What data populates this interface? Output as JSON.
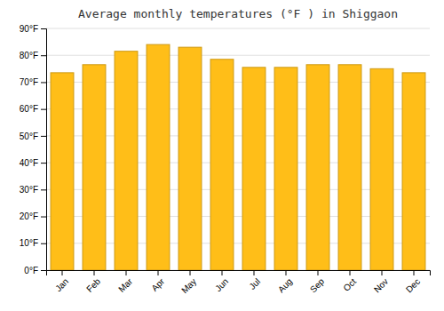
{
  "chart_data": {
    "type": "bar",
    "title": "Average monthly temperatures (°F ) in Shiggaon",
    "categories": [
      "Jan",
      "Feb",
      "Mar",
      "Apr",
      "May",
      "Jun",
      "Jul",
      "Aug",
      "Sep",
      "Oct",
      "Nov",
      "Dec"
    ],
    "values": [
      73.5,
      76.5,
      81.5,
      84.0,
      83.0,
      78.5,
      75.5,
      75.5,
      76.5,
      76.5,
      75.0,
      73.5
    ],
    "color": "#FFBE18",
    "ylim": [
      0,
      90
    ],
    "yticks": [
      {
        "value": 0,
        "label": "0°F"
      },
      {
        "value": 10,
        "label": "10°F"
      },
      {
        "value": 20,
        "label": "20°F"
      },
      {
        "value": 30,
        "label": "30°F"
      },
      {
        "value": 40,
        "label": "40°F"
      },
      {
        "value": 50,
        "label": "50°F"
      },
      {
        "value": 60,
        "label": "60°F"
      },
      {
        "value": 70,
        "label": "70°F"
      },
      {
        "value": 80,
        "label": "80°F"
      },
      {
        "value": 90,
        "label": "90°F"
      }
    ],
    "grid": true
  }
}
